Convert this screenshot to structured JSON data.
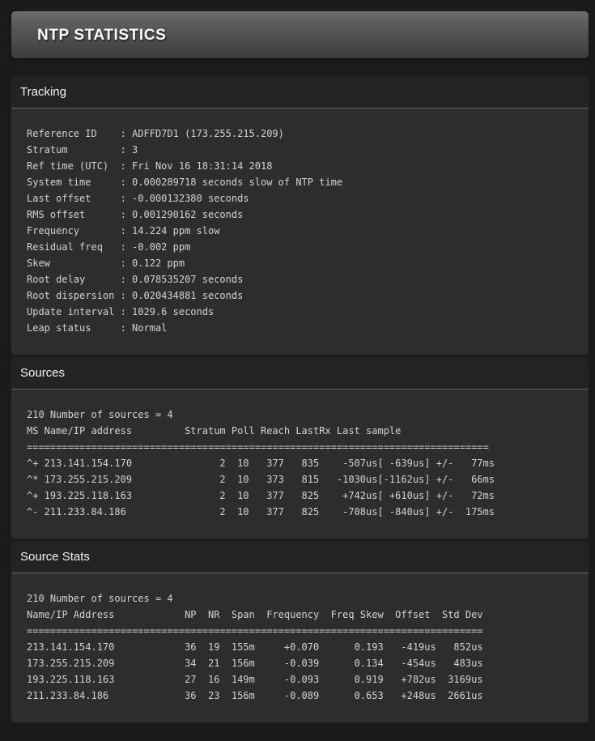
{
  "header": {
    "title": "NTP STATISTICS"
  },
  "theme_colors": {
    "page_background": "#1a1a1a",
    "banner_gradient_top": "#6a6a6a",
    "banner_gradient_bottom": "#3d3d3d",
    "section_header_background": "#232323",
    "section_body_background": "#2d2d2d",
    "divider_line": "#646464",
    "terminal_text": "#d3d3d3",
    "heading_text": "#f2f2f2"
  },
  "sections": [
    {
      "title": "Tracking",
      "lines": [
        "Reference ID    : ADFFD7D1 (173.255.215.209)",
        "Stratum         : 3",
        "Ref time (UTC)  : Fri Nov 16 18:31:14 2018",
        "System time     : 0.000289718 seconds slow of NTP time",
        "Last offset     : -0.000132380 seconds",
        "RMS offset      : 0.001290162 seconds",
        "Frequency       : 14.224 ppm slow",
        "Residual freq   : -0.002 ppm",
        "Skew            : 0.122 ppm",
        "Root delay      : 0.078535207 seconds",
        "Root dispersion : 0.020434881 seconds",
        "Update interval : 1029.6 seconds",
        "Leap status     : Normal"
      ]
    },
    {
      "title": "Sources",
      "lines": [
        "210 Number of sources = 4",
        "MS Name/IP address         Stratum Poll Reach LastRx Last sample",
        "===============================================================================",
        "^+ 213.141.154.170               2  10   377   835    -507us[ -639us] +/-   77ms",
        "^* 173.255.215.209               2  10   373   815   -1030us[-1162us] +/-   66ms",
        "^+ 193.225.118.163               2  10   377   825    +742us[ +610us] +/-   72ms",
        "^- 211.233.84.186                2  10   377   825    -708us[ -840us] +/-  175ms"
      ]
    },
    {
      "title": "Source Stats",
      "lines": [
        "210 Number of sources = 4",
        "Name/IP Address            NP  NR  Span  Frequency  Freq Skew  Offset  Std Dev",
        "==============================================================================",
        "213.141.154.170            36  19  155m     +0.070      0.193   -419us   852us",
        "173.255.215.209            34  21  156m     -0.039      0.134   -454us   483us",
        "193.225.118.163            27  16  149m     -0.093      0.919   +782us  3169us",
        "211.233.84.186             36  23  156m     -0.089      0.653   +248us  2661us"
      ]
    }
  ]
}
